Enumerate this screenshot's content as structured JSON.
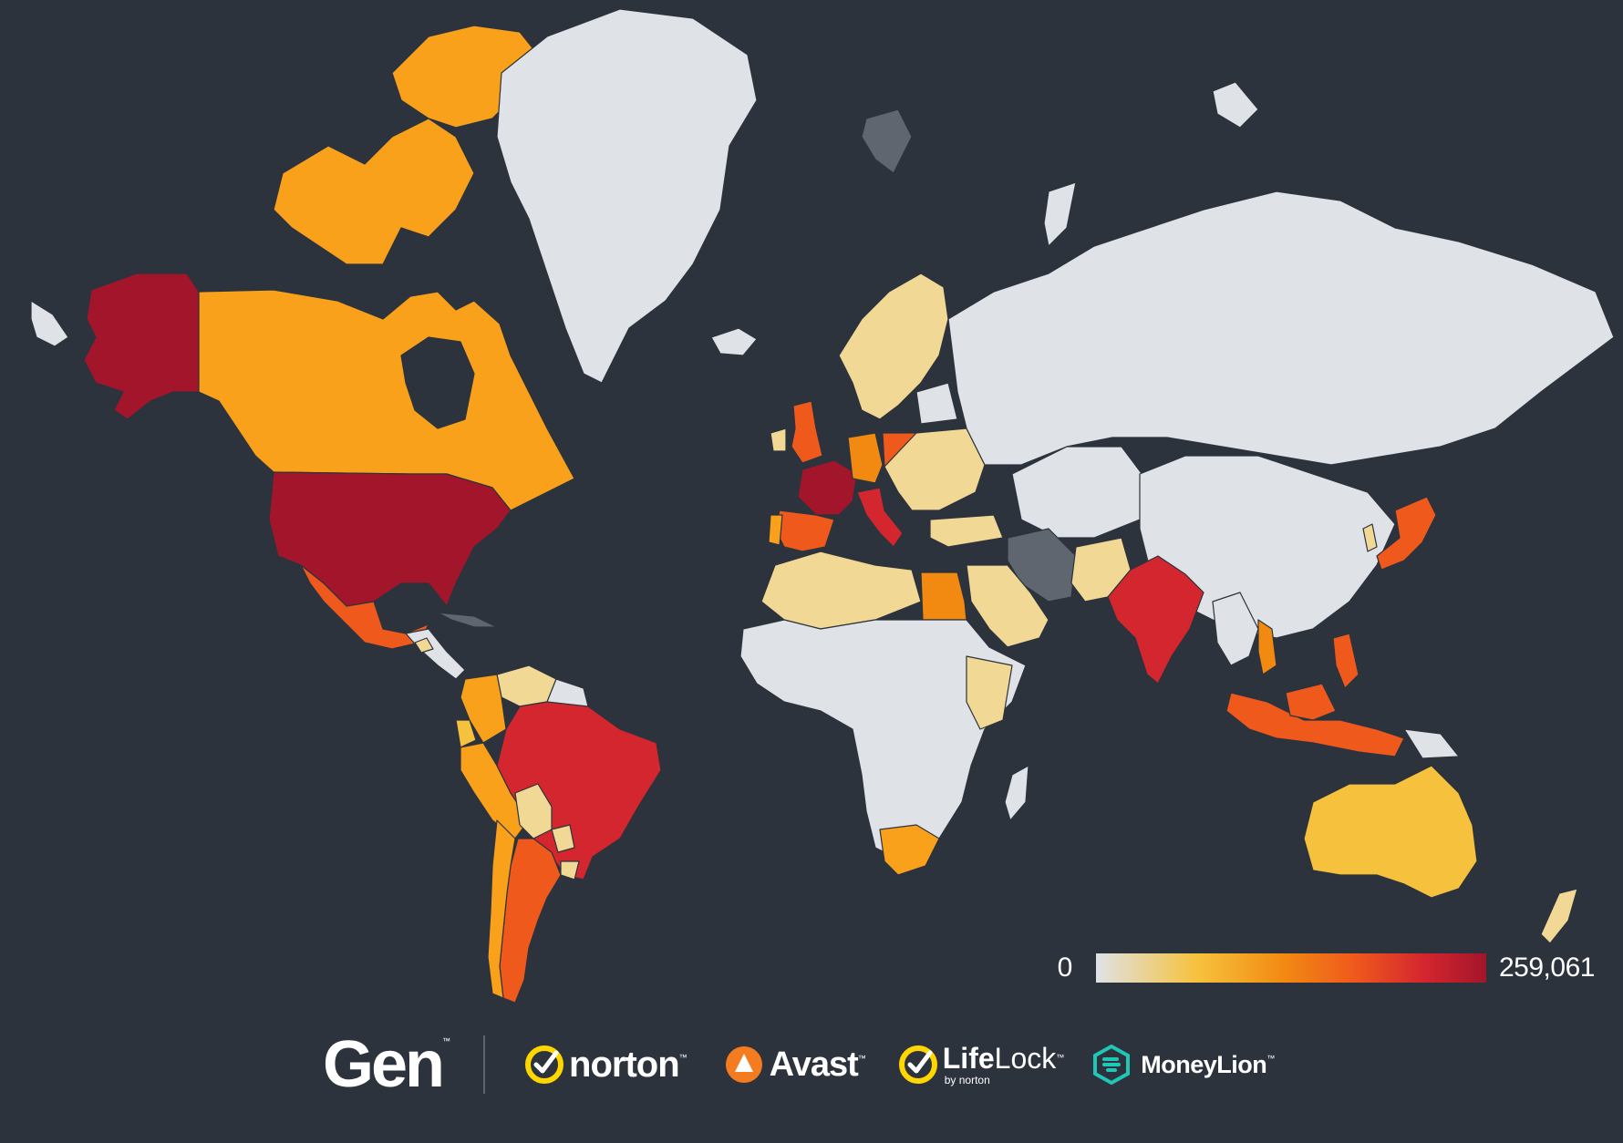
{
  "map": {
    "background_color": "#2d333d",
    "colors": {
      "none": "#dfe2e7",
      "low": "#f1d894",
      "mid_low": "#f6c23d",
      "mid": "#f9a11b",
      "mid_high": "#f28a12",
      "high": "#ef5a1c",
      "very_high": "#d4262e",
      "max": "#a3152a",
      "no_data": "#5f6670"
    },
    "regions": [
      {
        "name": "Alaska",
        "level": "max"
      },
      {
        "name": "Canada",
        "level": "mid"
      },
      {
        "name": "United States",
        "level": "max"
      },
      {
        "name": "Mexico",
        "level": "high"
      },
      {
        "name": "Greenland",
        "level": "none"
      },
      {
        "name": "Brazil",
        "level": "very_high"
      },
      {
        "name": "Argentina",
        "level": "high"
      },
      {
        "name": "Peru",
        "level": "mid"
      },
      {
        "name": "Colombia",
        "level": "mid"
      },
      {
        "name": "Chile",
        "level": "mid"
      },
      {
        "name": "United Kingdom",
        "level": "high"
      },
      {
        "name": "France",
        "level": "max"
      },
      {
        "name": "Spain",
        "level": "high"
      },
      {
        "name": "Germany",
        "level": "mid_high"
      },
      {
        "name": "Poland",
        "level": "high"
      },
      {
        "name": "Italy",
        "level": "very_high"
      },
      {
        "name": "Egypt",
        "level": "mid_high"
      },
      {
        "name": "South Africa",
        "level": "mid"
      },
      {
        "name": "India",
        "level": "very_high"
      },
      {
        "name": "Japan",
        "level": "high"
      },
      {
        "name": "Indonesia",
        "level": "high"
      },
      {
        "name": "Philippines",
        "level": "high"
      },
      {
        "name": "Australia",
        "level": "mid_low"
      },
      {
        "name": "Russia",
        "level": "none"
      },
      {
        "name": "China",
        "level": "none"
      },
      {
        "name": "Iran",
        "level": "no_data"
      }
    ]
  },
  "legend": {
    "min_label": "0",
    "max_label": "259,061"
  },
  "brands": {
    "gen": "Gen",
    "norton": "norton",
    "avast": "Avast",
    "lifelock_bold": "Life",
    "lifelock_light": "Lock",
    "lifelock_sub": "by norton",
    "moneylion": "MoneyLion",
    "tm": "™",
    "colors": {
      "norton_yellow": "#ffd600",
      "avast_orange": "#f47c20",
      "moneylion_teal": "#1fc7b6"
    }
  }
}
